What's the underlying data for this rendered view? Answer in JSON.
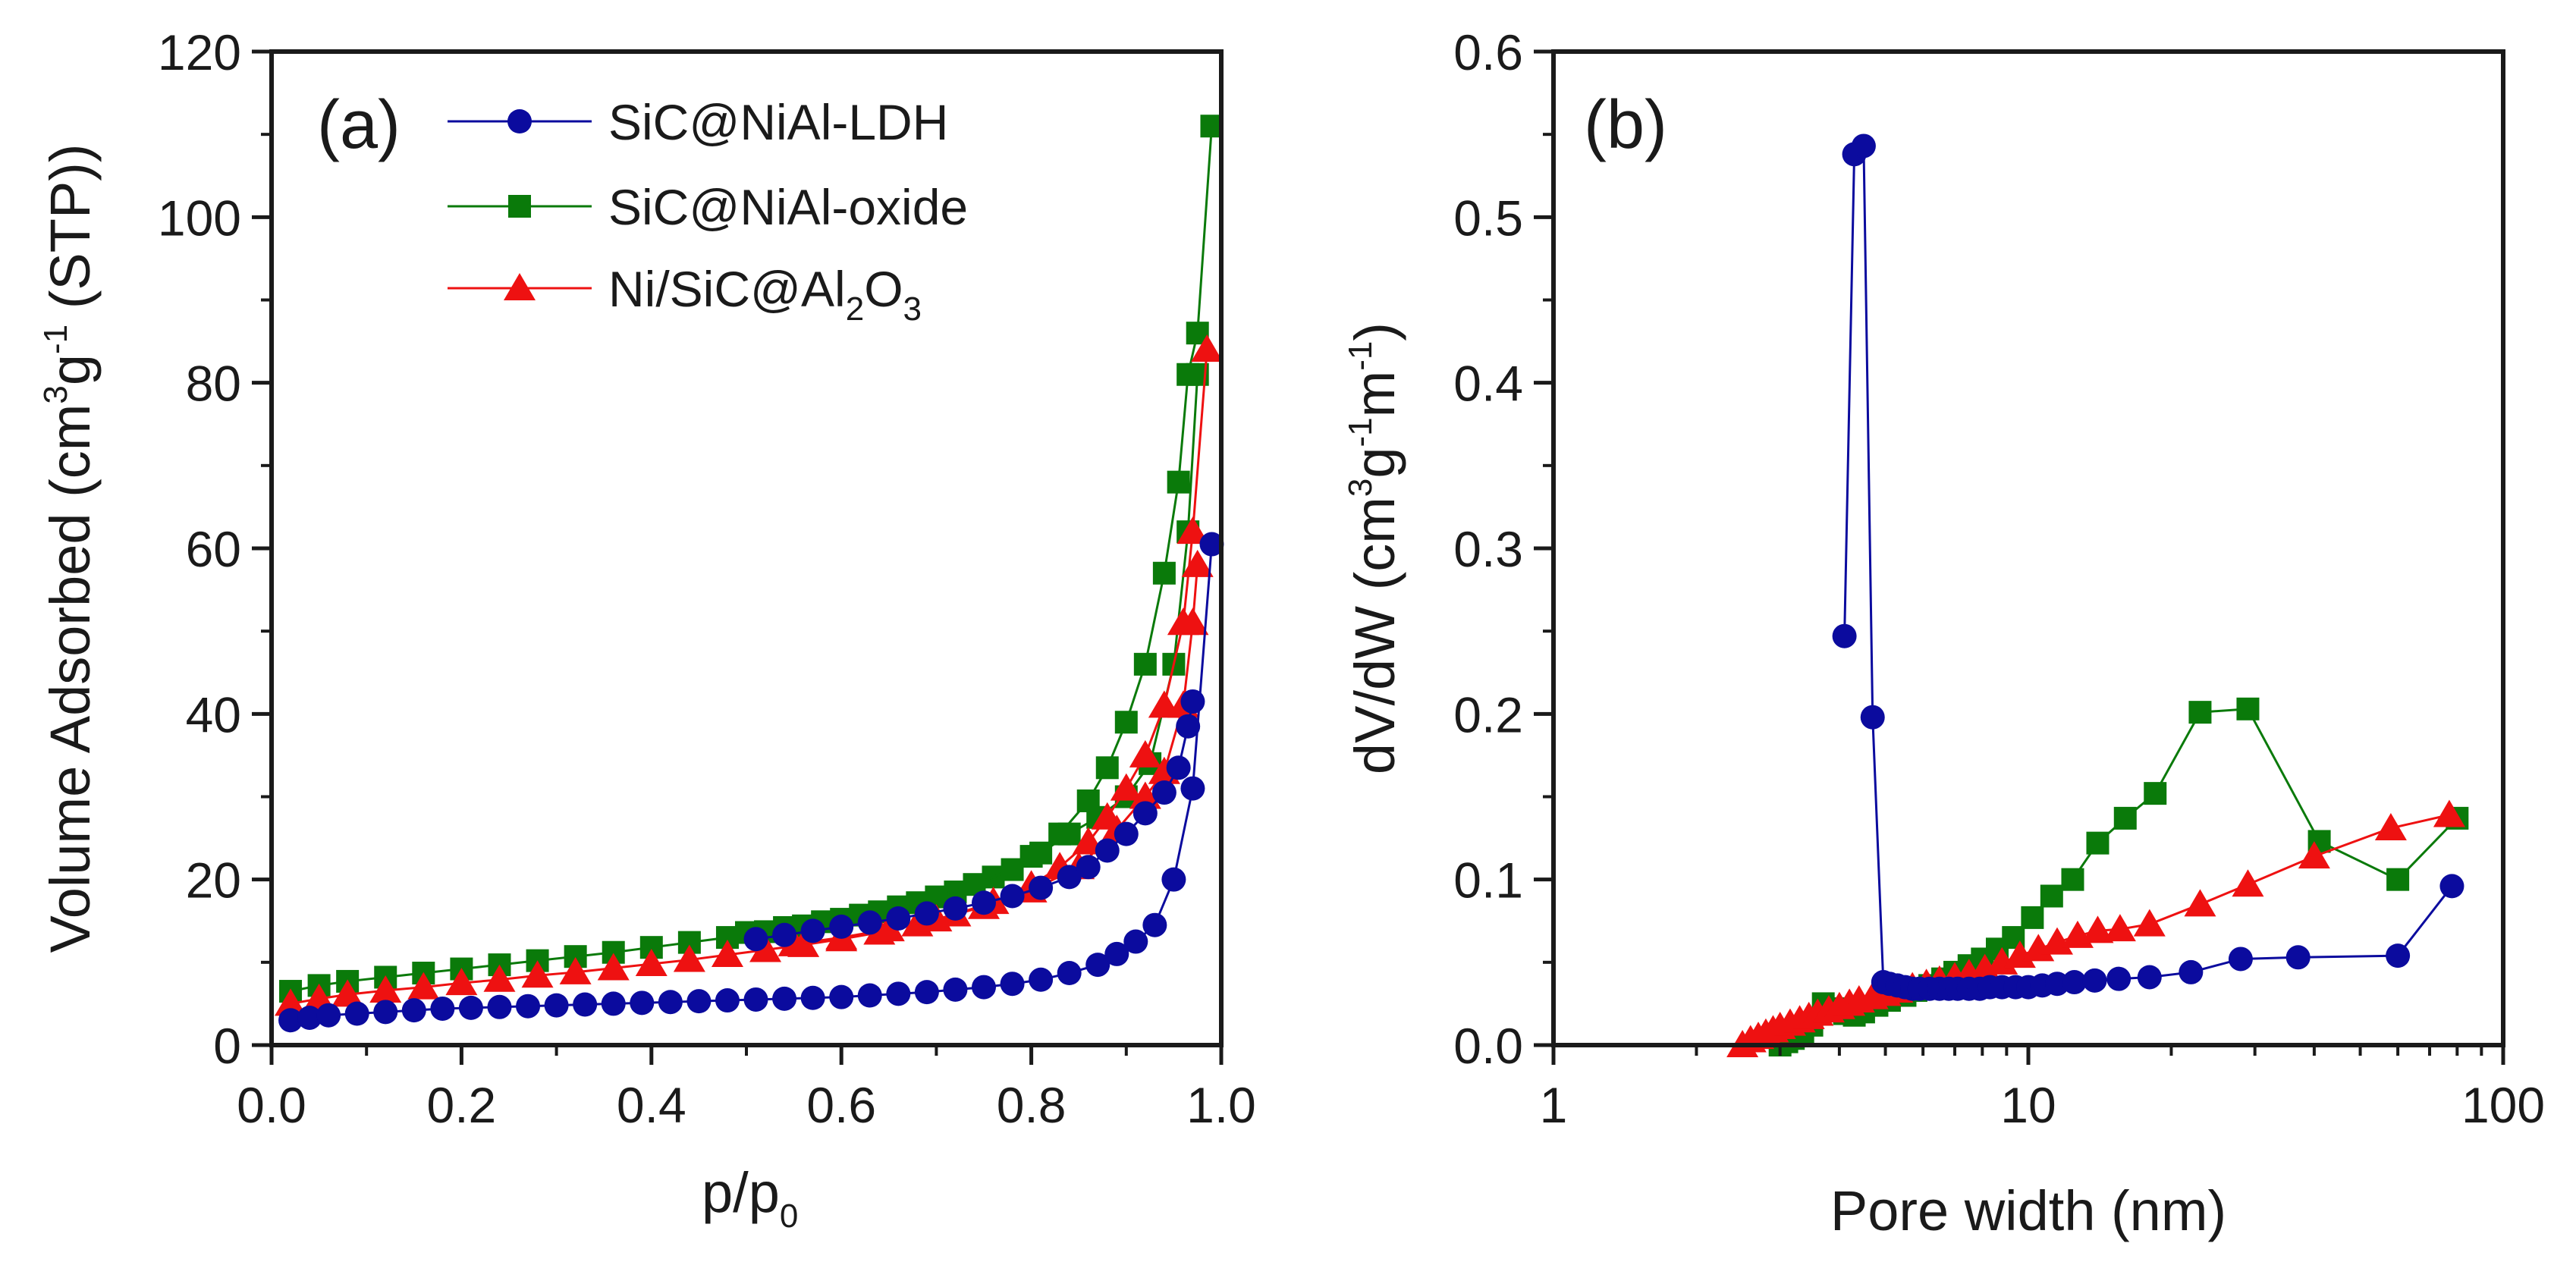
{
  "chart_data": [
    {
      "type": "scatter",
      "panel_label": "(a)",
      "xlabel": "p/p",
      "xlabel_sub": "0",
      "ylabel_parts": [
        "Volume Adsorbed (cm",
        "3",
        "g",
        "-1",
        " (STP))"
      ],
      "xlim": [
        0,
        1.0
      ],
      "ylim": [
        0,
        120
      ],
      "xticks": [
        "0.0",
        "0.2",
        "0.4",
        "0.6",
        "0.8",
        "1.0"
      ],
      "xtick_values": [
        0,
        0.2,
        0.4,
        0.6,
        0.8,
        1.0
      ],
      "yticks": [
        "0",
        "20",
        "40",
        "60",
        "80",
        "100",
        "120"
      ],
      "ytick_values": [
        0,
        20,
        40,
        60,
        80,
        100,
        120
      ],
      "legend_position": "top-right",
      "legend": [
        {
          "label": "SiC@NiAl-LDH",
          "marker": "circle",
          "color": "#0b0b9e"
        },
        {
          "label": "SiC@NiAl-oxide",
          "marker": "square",
          "color": "#0a7a0a"
        },
        {
          "label_main": "Ni/SiC@Al",
          "label_sub1": "2",
          "label_mid": "O",
          "label_sub2": "3",
          "marker": "triangle",
          "color": "#ee1111"
        }
      ],
      "series": [
        {
          "name": "SiC@NiAl-oxide",
          "color": "#0a7a0a",
          "marker": "square",
          "adsorption": [
            [
              0.02,
              6.5
            ],
            [
              0.05,
              7.2
            ],
            [
              0.08,
              7.7
            ],
            [
              0.12,
              8.2
            ],
            [
              0.16,
              8.7
            ],
            [
              0.2,
              9.2
            ],
            [
              0.24,
              9.7
            ],
            [
              0.28,
              10.2
            ],
            [
              0.32,
              10.7
            ],
            [
              0.36,
              11.2
            ],
            [
              0.4,
              11.8
            ],
            [
              0.44,
              12.4
            ],
            [
              0.48,
              13.0
            ],
            [
              0.52,
              13.7
            ],
            [
              0.56,
              14.4
            ],
            [
              0.6,
              15.2
            ],
            [
              0.64,
              16.1
            ],
            [
              0.68,
              17.2
            ],
            [
              0.72,
              18.5
            ],
            [
              0.76,
              20.3
            ],
            [
              0.8,
              22.8
            ],
            [
              0.83,
              25.5
            ],
            [
              0.86,
              29.5
            ],
            [
              0.88,
              33.5
            ],
            [
              0.9,
              39
            ],
            [
              0.92,
              46
            ],
            [
              0.94,
              57
            ],
            [
              0.955,
              68
            ],
            [
              0.965,
              81
            ],
            [
              0.975,
              86
            ],
            [
              0.99,
              111
            ]
          ],
          "desorption": [
            [
              0.5,
              13.6
            ],
            [
              0.54,
              14.2
            ],
            [
              0.58,
              14.9
            ],
            [
              0.62,
              15.7
            ],
            [
              0.66,
              16.7
            ],
            [
              0.7,
              17.9
            ],
            [
              0.74,
              19.4
            ],
            [
              0.78,
              21.2
            ],
            [
              0.81,
              23.2
            ],
            [
              0.84,
              25.5
            ],
            [
              0.87,
              27.5
            ],
            [
              0.9,
              30.0
            ],
            [
              0.925,
              34
            ],
            [
              0.95,
              46
            ],
            [
              0.965,
              62
            ],
            [
              0.975,
              81
            ]
          ]
        },
        {
          "name": "Ni/SiC@Al2O3",
          "color": "#ee1111",
          "marker": "triangle",
          "adsorption": [
            [
              0.02,
              5.0
            ],
            [
              0.05,
              5.6
            ],
            [
              0.08,
              6.1
            ],
            [
              0.12,
              6.6
            ],
            [
              0.16,
              7.0
            ],
            [
              0.2,
              7.5
            ],
            [
              0.24,
              7.9
            ],
            [
              0.28,
              8.4
            ],
            [
              0.32,
              8.8
            ],
            [
              0.36,
              9.3
            ],
            [
              0.4,
              9.8
            ],
            [
              0.44,
              10.3
            ],
            [
              0.48,
              10.9
            ],
            [
              0.52,
              11.5
            ],
            [
              0.56,
              12.1
            ],
            [
              0.6,
              12.8
            ],
            [
              0.64,
              13.6
            ],
            [
              0.68,
              14.6
            ],
            [
              0.72,
              15.8
            ],
            [
              0.76,
              17.3
            ],
            [
              0.8,
              19.3
            ],
            [
              0.83,
              21.5
            ],
            [
              0.86,
              24.5
            ],
            [
              0.88,
              27.5
            ],
            [
              0.9,
              31
            ],
            [
              0.92,
              35
            ],
            [
              0.94,
              41
            ],
            [
              0.96,
              51
            ],
            [
              0.97,
              62
            ],
            [
              0.985,
              84
            ]
          ],
          "desorption": [
            [
              0.55,
              12.2
            ],
            [
              0.6,
              13.0
            ],
            [
              0.65,
              14.0
            ],
            [
              0.7,
              15.2
            ],
            [
              0.75,
              16.7
            ],
            [
              0.8,
              18.7
            ],
            [
              0.85,
              21.5
            ],
            [
              0.89,
              26
            ],
            [
              0.92,
              30
            ],
            [
              0.94,
              33
            ],
            [
              0.96,
              41
            ],
            [
              0.97,
              51
            ],
            [
              0.975,
              58
            ]
          ]
        },
        {
          "name": "SiC@NiAl-LDH",
          "color": "#0b0b9e",
          "marker": "circle",
          "adsorption": [
            [
              0.02,
              3.0
            ],
            [
              0.04,
              3.3
            ],
            [
              0.06,
              3.6
            ],
            [
              0.09,
              3.8
            ],
            [
              0.12,
              4.0
            ],
            [
              0.15,
              4.2
            ],
            [
              0.18,
              4.4
            ],
            [
              0.21,
              4.5
            ],
            [
              0.24,
              4.6
            ],
            [
              0.27,
              4.7
            ],
            [
              0.3,
              4.8
            ],
            [
              0.33,
              4.9
            ],
            [
              0.36,
              5.0
            ],
            [
              0.39,
              5.1
            ],
            [
              0.42,
              5.2
            ],
            [
              0.45,
              5.3
            ],
            [
              0.48,
              5.4
            ],
            [
              0.51,
              5.5
            ],
            [
              0.54,
              5.6
            ],
            [
              0.57,
              5.7
            ],
            [
              0.6,
              5.8
            ],
            [
              0.63,
              6.0
            ],
            [
              0.66,
              6.2
            ],
            [
              0.69,
              6.4
            ],
            [
              0.72,
              6.7
            ],
            [
              0.75,
              7.0
            ],
            [
              0.78,
              7.4
            ],
            [
              0.81,
              7.9
            ],
            [
              0.84,
              8.7
            ],
            [
              0.87,
              9.7
            ],
            [
              0.89,
              11
            ],
            [
              0.91,
              12.5
            ],
            [
              0.93,
              14.5
            ],
            [
              0.95,
              20
            ],
            [
              0.97,
              31
            ],
            [
              0.99,
              60.5
            ]
          ],
          "desorption": [
            [
              0.51,
              12.8
            ],
            [
              0.54,
              13.3
            ],
            [
              0.57,
              13.8
            ],
            [
              0.6,
              14.3
            ],
            [
              0.63,
              14.8
            ],
            [
              0.66,
              15.3
            ],
            [
              0.69,
              15.9
            ],
            [
              0.72,
              16.5
            ],
            [
              0.75,
              17.2
            ],
            [
              0.78,
              18.0
            ],
            [
              0.81,
              19.0
            ],
            [
              0.84,
              20.3
            ],
            [
              0.86,
              21.5
            ],
            [
              0.88,
              23.5
            ],
            [
              0.9,
              25.5
            ],
            [
              0.92,
              28
            ],
            [
              0.94,
              30.5
            ],
            [
              0.955,
              33.5
            ],
            [
              0.965,
              38.5
            ],
            [
              0.97,
              41.5
            ]
          ]
        }
      ]
    },
    {
      "type": "line",
      "panel_label": "(b)",
      "xlabel": "Pore width (nm)",
      "ylabel_parts": [
        "dV/dW (cm",
        "3",
        "g",
        "-1",
        "m",
        "-1",
        ")"
      ],
      "xscale": "log",
      "xlim": [
        1,
        100
      ],
      "ylim": [
        0,
        0.6
      ],
      "xticks": [
        "1",
        "10",
        "100"
      ],
      "xtick_values": [
        1,
        10,
        100
      ],
      "yticks": [
        "0.0",
        "0.1",
        "0.2",
        "0.3",
        "0.4",
        "0.5",
        "0.6"
      ],
      "ytick_values": [
        0,
        0.1,
        0.2,
        0.3,
        0.4,
        0.5,
        0.6
      ],
      "series": [
        {
          "name": "SiC@NiAl-oxide",
          "color": "#0a7a0a",
          "marker": "square",
          "points": [
            [
              3.0,
              0.0
            ],
            [
              3.1,
              0.002
            ],
            [
              3.2,
              0.004
            ],
            [
              3.35,
              0.008
            ],
            [
              3.5,
              0.012
            ],
            [
              3.7,
              0.025
            ],
            [
              3.9,
              0.022
            ],
            [
              4.1,
              0.019
            ],
            [
              4.3,
              0.018
            ],
            [
              4.5,
              0.02
            ],
            [
              4.8,
              0.024
            ],
            [
              5.1,
              0.027
            ],
            [
              5.5,
              0.03
            ],
            [
              5.8,
              0.033
            ],
            [
              6.2,
              0.036
            ],
            [
              6.6,
              0.04
            ],
            [
              7.0,
              0.044
            ],
            [
              7.5,
              0.048
            ],
            [
              8.0,
              0.052
            ],
            [
              8.6,
              0.058
            ],
            [
              9.3,
              0.065
            ],
            [
              10.2,
              0.077
            ],
            [
              11.2,
              0.09
            ],
            [
              12.4,
              0.1
            ],
            [
              14.0,
              0.122
            ],
            [
              16.0,
              0.137
            ],
            [
              18.5,
              0.152
            ],
            [
              23.0,
              0.201
            ],
            [
              29.0,
              0.203
            ],
            [
              41.0,
              0.123
            ],
            [
              60.0,
              0.1
            ],
            [
              80.0,
              0.137
            ]
          ]
        },
        {
          "name": "Ni/SiC@Al2O3",
          "color": "#ee1111",
          "marker": "triangle",
          "points": [
            [
              2.5,
              0.0
            ],
            [
              2.6,
              0.003
            ],
            [
              2.7,
              0.005
            ],
            [
              2.8,
              0.007
            ],
            [
              2.9,
              0.009
            ],
            [
              3.0,
              0.011
            ],
            [
              3.15,
              0.013
            ],
            [
              3.3,
              0.015
            ],
            [
              3.45,
              0.017
            ],
            [
              3.6,
              0.019
            ],
            [
              3.8,
              0.021
            ],
            [
              4.0,
              0.023
            ],
            [
              4.2,
              0.025
            ],
            [
              4.4,
              0.027
            ],
            [
              4.7,
              0.029
            ],
            [
              5.0,
              0.031
            ],
            [
              5.3,
              0.033
            ],
            [
              5.7,
              0.035
            ],
            [
              6.1,
              0.037
            ],
            [
              6.5,
              0.039
            ],
            [
              7.0,
              0.041
            ],
            [
              7.5,
              0.043
            ],
            [
              8.1,
              0.046
            ],
            [
              8.8,
              0.05
            ],
            [
              9.6,
              0.054
            ],
            [
              10.5,
              0.058
            ],
            [
              11.5,
              0.062
            ],
            [
              12.7,
              0.066
            ],
            [
              14.0,
              0.069
            ],
            [
              15.6,
              0.07
            ],
            [
              18.0,
              0.073
            ],
            [
              23.0,
              0.085
            ],
            [
              29.0,
              0.097
            ],
            [
              40.0,
              0.114
            ],
            [
              58.0,
              0.131
            ],
            [
              77.0,
              0.139
            ]
          ]
        },
        {
          "name": "SiC@NiAl-LDH",
          "color": "#0b0b9e",
          "marker": "circle",
          "points": [
            [
              4.1,
              0.247
            ],
            [
              4.3,
              0.538
            ],
            [
              4.5,
              0.543
            ],
            [
              4.7,
              0.198
            ],
            [
              4.95,
              0.038
            ],
            [
              5.1,
              0.037
            ],
            [
              5.3,
              0.036
            ],
            [
              5.5,
              0.035
            ],
            [
              5.7,
              0.034
            ],
            [
              5.9,
              0.034
            ],
            [
              6.2,
              0.034
            ],
            [
              6.5,
              0.034
            ],
            [
              6.8,
              0.034
            ],
            [
              7.1,
              0.034
            ],
            [
              7.5,
              0.034
            ],
            [
              7.9,
              0.034
            ],
            [
              8.3,
              0.035
            ],
            [
              8.8,
              0.035
            ],
            [
              9.4,
              0.035
            ],
            [
              10.0,
              0.035
            ],
            [
              10.7,
              0.036
            ],
            [
              11.5,
              0.037
            ],
            [
              12.5,
              0.038
            ],
            [
              13.8,
              0.039
            ],
            [
              15.5,
              0.04
            ],
            [
              18.0,
              0.041
            ],
            [
              22.0,
              0.044
            ],
            [
              28.0,
              0.052
            ],
            [
              37.0,
              0.053
            ],
            [
              60.0,
              0.054
            ],
            [
              78.0,
              0.096
            ]
          ]
        }
      ]
    }
  ]
}
